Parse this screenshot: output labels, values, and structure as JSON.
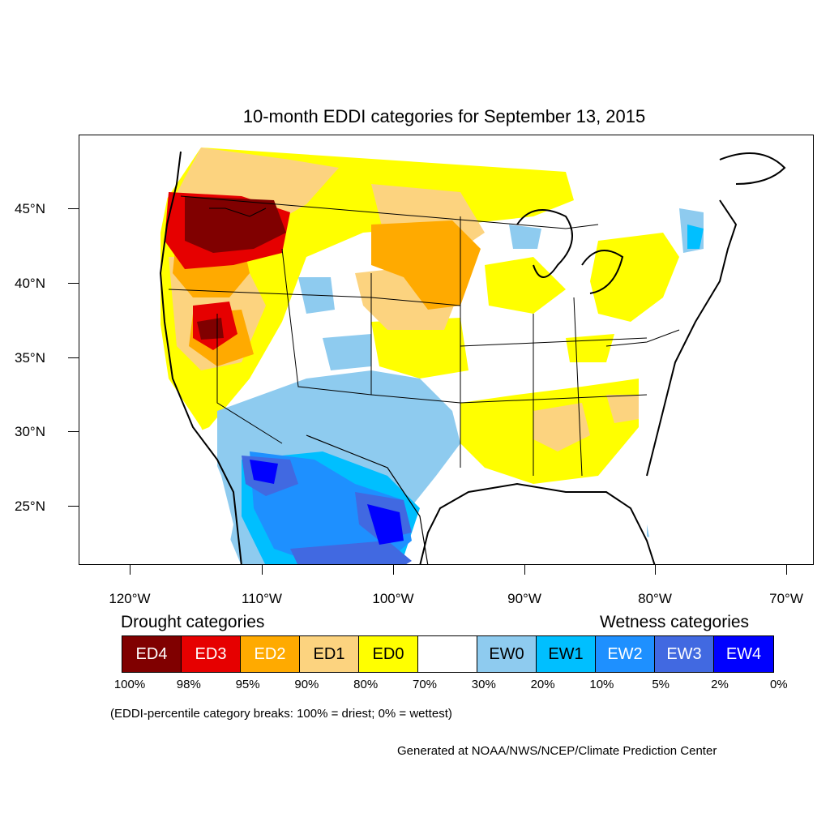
{
  "title": "10-month EDDI categories for September 13, 2015",
  "lat_labels": [
    "45°N",
    "40°N",
    "35°N",
    "30°N",
    "25°N"
  ],
  "lon_labels": [
    "120°W",
    "110°W",
    "100°W",
    "90°W",
    "80°W",
    "70°W"
  ],
  "legend": {
    "drought_heading": "Drought categories",
    "wetness_heading": "Wetness categories",
    "categories": [
      {
        "label": "ED4",
        "color": "#800000",
        "text_color": "#ffffff"
      },
      {
        "label": "ED3",
        "color": "#e60000",
        "text_color": "#ffffff"
      },
      {
        "label": "ED2",
        "color": "#ffaa00",
        "text_color": "#ffffff"
      },
      {
        "label": "ED1",
        "color": "#fcd37f",
        "text_color": "#000000"
      },
      {
        "label": "ED0",
        "color": "#ffff00",
        "text_color": "#000000"
      },
      {
        "label": "",
        "color": "#ffffff",
        "text_color": "#000000"
      },
      {
        "label": "EW0",
        "color": "#8ecbef",
        "text_color": "#000000"
      },
      {
        "label": "EW1",
        "color": "#00bfff",
        "text_color": "#000000"
      },
      {
        "label": "EW2",
        "color": "#1e90ff",
        "text_color": "#ffffff"
      },
      {
        "label": "EW3",
        "color": "#4169e1",
        "text_color": "#ffffff"
      },
      {
        "label": "EW4",
        "color": "#0000ff",
        "text_color": "#ffffff"
      }
    ],
    "percent_breaks": [
      "100%",
      "98%",
      "95%",
      "90%",
      "80%",
      "70%",
      "30%",
      "20%",
      "10%",
      "5%",
      "2%",
      "0%"
    ]
  },
  "note": "(EDDI-percentile category breaks: 100% = driest; 0% = wettest)",
  "credit": "Generated at NOAA/NWS/NCEP/Climate Prediction Center"
}
